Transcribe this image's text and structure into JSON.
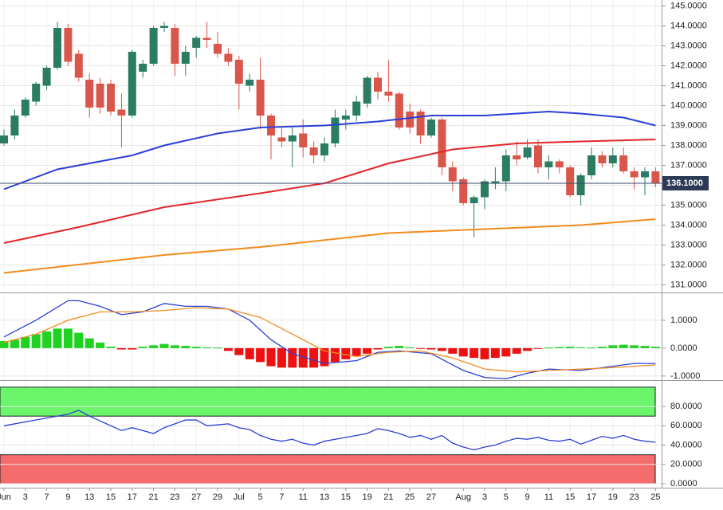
{
  "chart_data": [
    {
      "type": "candlestick",
      "up_color": "#2a7d62",
      "down_color": "#d9564b",
      "ohlc": [
        [
          138.1,
          138.8,
          138.0,
          138.5
        ],
        [
          138.5,
          139.8,
          138.3,
          139.5
        ],
        [
          139.5,
          140.4,
          139.4,
          140.3
        ],
        [
          140.2,
          141.2,
          140.0,
          141.1
        ],
        [
          141.0,
          142.0,
          140.8,
          141.9
        ],
        [
          141.9,
          144.2,
          141.8,
          143.9
        ],
        [
          143.9,
          144.1,
          142.0,
          142.2
        ],
        [
          142.6,
          142.8,
          141.2,
          141.4
        ],
        [
          141.3,
          141.6,
          139.4,
          139.9
        ],
        [
          141.1,
          141.4,
          139.6,
          139.9
        ],
        [
          141.1,
          141.3,
          139.5,
          139.7
        ],
        [
          139.8,
          140.6,
          137.9,
          139.5
        ],
        [
          139.5,
          142.8,
          139.4,
          142.7
        ],
        [
          141.7,
          142.3,
          141.4,
          142.1
        ],
        [
          142.1,
          144.0,
          142.0,
          143.9
        ],
        [
          143.9,
          144.2,
          143.7,
          144.0
        ],
        [
          143.9,
          144.1,
          141.5,
          142.1
        ],
        [
          142.1,
          143.0,
          141.5,
          142.7
        ],
        [
          142.9,
          143.5,
          142.4,
          143.4
        ],
        [
          143.4,
          144.2,
          142.9,
          143.3
        ],
        [
          143.1,
          143.7,
          142.4,
          142.6
        ],
        [
          142.6,
          142.9,
          142.0,
          142.2
        ],
        [
          142.3,
          142.5,
          139.8,
          141.1
        ],
        [
          141.0,
          141.6,
          140.7,
          141.3
        ],
        [
          141.3,
          142.4,
          138.8,
          139.5
        ],
        [
          139.5,
          139.6,
          137.3,
          138.5
        ],
        [
          138.4,
          138.9,
          137.9,
          138.2
        ],
        [
          138.2,
          138.9,
          136.9,
          138.5
        ],
        [
          138.6,
          139.3,
          137.4,
          137.9
        ],
        [
          137.9,
          138.2,
          137.1,
          137.5
        ],
        [
          137.5,
          138.4,
          137.2,
          138.1
        ],
        [
          138.1,
          139.8,
          137.9,
          139.4
        ],
        [
          139.3,
          139.8,
          138.8,
          139.5
        ],
        [
          139.5,
          140.5,
          139.2,
          140.2
        ],
        [
          140.1,
          141.5,
          139.9,
          141.4
        ],
        [
          141.4,
          141.7,
          140.3,
          140.7
        ],
        [
          140.7,
          142.3,
          140.2,
          140.5
        ],
        [
          140.6,
          140.7,
          138.8,
          138.9
        ],
        [
          139.7,
          140.1,
          138.6,
          138.9
        ],
        [
          139.7,
          139.8,
          138.1,
          138.5
        ],
        [
          138.5,
          139.4,
          138.4,
          139.3
        ],
        [
          139.3,
          139.4,
          136.5,
          136.9
        ],
        [
          136.9,
          137.2,
          135.7,
          136.2
        ],
        [
          136.3,
          136.4,
          135.0,
          135.1
        ],
        [
          135.1,
          135.5,
          133.4,
          135.4
        ],
        [
          135.4,
          136.3,
          134.8,
          136.2
        ],
        [
          136.1,
          136.9,
          135.8,
          136.2
        ],
        [
          136.2,
          137.8,
          135.7,
          137.5
        ],
        [
          137.5,
          138.2,
          137.0,
          137.3
        ],
        [
          137.4,
          138.3,
          137.3,
          137.9
        ],
        [
          138.0,
          138.3,
          136.6,
          136.9
        ],
        [
          136.9,
          137.5,
          136.3,
          137.2
        ],
        [
          137.2,
          137.3,
          136.6,
          136.9
        ],
        [
          136.9,
          137.0,
          135.4,
          135.5
        ],
        [
          135.5,
          136.6,
          135.0,
          136.5
        ],
        [
          136.5,
          137.9,
          136.3,
          137.5
        ],
        [
          137.5,
          137.7,
          136.9,
          137.1
        ],
        [
          137.1,
          137.9,
          136.9,
          137.5
        ],
        [
          137.5,
          137.9,
          136.6,
          136.7
        ],
        [
          136.7,
          136.9,
          135.8,
          136.4
        ],
        [
          136.4,
          136.9,
          135.5,
          136.7
        ],
        [
          136.7,
          136.9,
          135.9,
          136.1
        ]
      ],
      "overlays": [
        {
          "color": "#2b3fd6",
          "x": [
            0,
            5,
            7,
            12,
            15,
            20,
            24,
            30,
            35,
            40,
            45,
            51,
            54,
            58,
            61
          ],
          "values": [
            135.8,
            136.8,
            137.0,
            137.5,
            138.0,
            138.6,
            138.9,
            139.0,
            139.2,
            139.5,
            139.5,
            139.7,
            139.6,
            139.4,
            139.0
          ]
        },
        {
          "color": "#e3262a",
          "x": [
            0,
            7,
            15,
            24,
            30,
            36,
            42,
            48,
            54,
            61
          ],
          "values": [
            133.1,
            133.9,
            134.9,
            135.6,
            136.1,
            137.1,
            137.8,
            138.1,
            138.2,
            138.3
          ]
        },
        {
          "color": "#f28c1c",
          "x": [
            0,
            15,
            24,
            36,
            45,
            54,
            61
          ],
          "values": [
            131.6,
            132.5,
            132.9,
            133.6,
            133.8,
            134.0,
            134.3
          ]
        }
      ],
      "last_price": {
        "value": 136.1,
        "label": "136.1000"
      },
      "ylim": [
        130.7,
        145.3
      ],
      "yticks": [
        {
          "value": 131,
          "label": "131.0000"
        },
        {
          "value": 132,
          "label": "132.0000"
        },
        {
          "value": 133,
          "label": "133.0000"
        },
        {
          "value": 134,
          "label": "134.0000"
        },
        {
          "value": 135,
          "label": "135.0000"
        },
        {
          "value": 136,
          "label": "136.0000"
        },
        {
          "value": 137,
          "label": "137.0000"
        },
        {
          "value": 138,
          "label": "138.0000"
        },
        {
          "value": 139,
          "label": "139.0000"
        },
        {
          "value": 140,
          "label": "140.0000"
        },
        {
          "value": 141,
          "label": "141.0000"
        },
        {
          "value": 142,
          "label": "142.0000"
        },
        {
          "value": 143,
          "label": "143.0000"
        },
        {
          "value": 144,
          "label": "144.0000"
        },
        {
          "value": 145,
          "label": "145.0000"
        }
      ],
      "grid": true
    },
    {
      "type": "macd",
      "up_color": "#1fd21f",
      "down_color": "#ee1111",
      "histogram": [
        0.25,
        0.3,
        0.4,
        0.5,
        0.6,
        0.7,
        0.7,
        0.55,
        0.35,
        0.2,
        0.05,
        -0.05,
        -0.05,
        0.05,
        0.1,
        0.15,
        0.1,
        0.08,
        0.05,
        0.03,
        0.02,
        -0.1,
        -0.25,
        -0.4,
        -0.5,
        -0.65,
        -0.7,
        -0.7,
        -0.7,
        -0.7,
        -0.65,
        -0.5,
        -0.4,
        -0.3,
        -0.2,
        -0.05,
        0.05,
        0.08,
        0.03,
        -0.02,
        -0.05,
        -0.1,
        -0.2,
        -0.3,
        -0.35,
        -0.4,
        -0.35,
        -0.3,
        -0.2,
        -0.1,
        -0.02,
        0.02,
        0.04,
        0.05,
        0.03,
        0.02,
        0.05,
        0.1,
        0.12,
        0.1,
        0.08,
        0.05
      ],
      "lines": [
        {
          "color": "#2b3fd6",
          "x": [
            0,
            3,
            6,
            7,
            9,
            11,
            13,
            15,
            17,
            19,
            21,
            23,
            25,
            27,
            30,
            33,
            35,
            37,
            40,
            43,
            45,
            47,
            49,
            51,
            54,
            57,
            59,
            61
          ],
          "values": [
            0.4,
            1.0,
            1.7,
            1.7,
            1.5,
            1.2,
            1.3,
            1.6,
            1.5,
            1.5,
            1.4,
            1.0,
            0.3,
            -0.2,
            -0.55,
            -0.45,
            -0.15,
            -0.1,
            -0.2,
            -0.8,
            -1.05,
            -1.1,
            -0.9,
            -0.75,
            -0.8,
            -0.65,
            -0.55,
            -0.55
          ]
        },
        {
          "color": "#f28c1c",
          "x": [
            0,
            3,
            6,
            9,
            12,
            15,
            18,
            21,
            24,
            27,
            30,
            33,
            36,
            39,
            42,
            45,
            48,
            51,
            54,
            57,
            61
          ],
          "values": [
            0.2,
            0.5,
            1.0,
            1.3,
            1.3,
            1.35,
            1.45,
            1.4,
            1.1,
            0.5,
            -0.1,
            -0.3,
            -0.15,
            -0.1,
            -0.35,
            -0.75,
            -0.85,
            -0.8,
            -0.75,
            -0.7,
            -0.6
          ]
        }
      ],
      "ylim": [
        -1.09,
        1.91
      ],
      "yticks": [
        {
          "value": -1,
          "label": "-1.0000"
        },
        {
          "value": 0,
          "label": "0.0000"
        },
        {
          "value": 1,
          "label": "1.0000"
        }
      ],
      "grid": true
    },
    {
      "type": "rsi",
      "color": "#2b3fd6",
      "zones": [
        {
          "from": 70,
          "to": 100,
          "color": "#6af56a"
        },
        {
          "from": 0,
          "to": 30,
          "color": "#f56c6c"
        }
      ],
      "x": [
        0,
        3,
        6,
        7,
        8,
        10,
        11,
        12,
        13,
        14,
        15,
        16,
        17,
        18,
        19,
        21,
        22,
        23,
        24,
        25,
        26,
        27,
        28,
        29,
        30,
        32,
        34,
        35,
        36,
        37,
        38,
        39,
        40,
        41,
        42,
        43,
        44,
        45,
        46,
        47,
        48,
        49,
        50,
        51,
        52,
        53,
        54,
        55,
        56,
        57,
        58,
        59,
        60,
        61
      ],
      "values": [
        60,
        66,
        72,
        76,
        70,
        60,
        55,
        58,
        55,
        52,
        58,
        62,
        66,
        66,
        60,
        62,
        58,
        56,
        50,
        46,
        44,
        46,
        42,
        40,
        44,
        48,
        52,
        57,
        55,
        52,
        48,
        50,
        46,
        50,
        42,
        38,
        35,
        38,
        40,
        44,
        47,
        46,
        48,
        45,
        44,
        46,
        41,
        45,
        49,
        47,
        50,
        46,
        44,
        43
      ],
      "ylim": [
        0,
        104
      ],
      "yticks": [
        {
          "value": 0,
          "label": "0.0000"
        },
        {
          "value": 20,
          "label": "20.0000"
        },
        {
          "value": 40,
          "label": "40.0000"
        },
        {
          "value": 60,
          "label": "60.0000"
        },
        {
          "value": 80,
          "label": "80.0000"
        }
      ],
      "xticks": [
        {
          "value": 0,
          "label": "Jun"
        },
        {
          "value": 2,
          "label": "3"
        },
        {
          "value": 4,
          "label": "7"
        },
        {
          "value": 6,
          "label": "9"
        },
        {
          "value": 8,
          "label": "13"
        },
        {
          "value": 10,
          "label": "15"
        },
        {
          "value": 12,
          "label": "17"
        },
        {
          "value": 14,
          "label": "21"
        },
        {
          "value": 16,
          "label": "23"
        },
        {
          "value": 18,
          "label": "27"
        },
        {
          "value": 20,
          "label": "29"
        },
        {
          "value": 22,
          "label": "Jul"
        },
        {
          "value": 24,
          "label": "5"
        },
        {
          "value": 26,
          "label": "7"
        },
        {
          "value": 28,
          "label": "11"
        },
        {
          "value": 30,
          "label": "13"
        },
        {
          "value": 32,
          "label": "15"
        },
        {
          "value": 34,
          "label": "19"
        },
        {
          "value": 36,
          "label": "21"
        },
        {
          "value": 38,
          "label": "25"
        },
        {
          "value": 40,
          "label": "27"
        },
        {
          "value": 43,
          "label": "Aug"
        },
        {
          "value": 45,
          "label": "3"
        },
        {
          "value": 47,
          "label": "5"
        },
        {
          "value": 49,
          "label": "9"
        },
        {
          "value": 51,
          "label": "11"
        },
        {
          "value": 53,
          "label": "15"
        },
        {
          "value": 55,
          "label": "17"
        },
        {
          "value": 57,
          "label": "19"
        },
        {
          "value": 59,
          "label": "23"
        },
        {
          "value": 61,
          "label": "25"
        }
      ],
      "grid": true
    }
  ]
}
